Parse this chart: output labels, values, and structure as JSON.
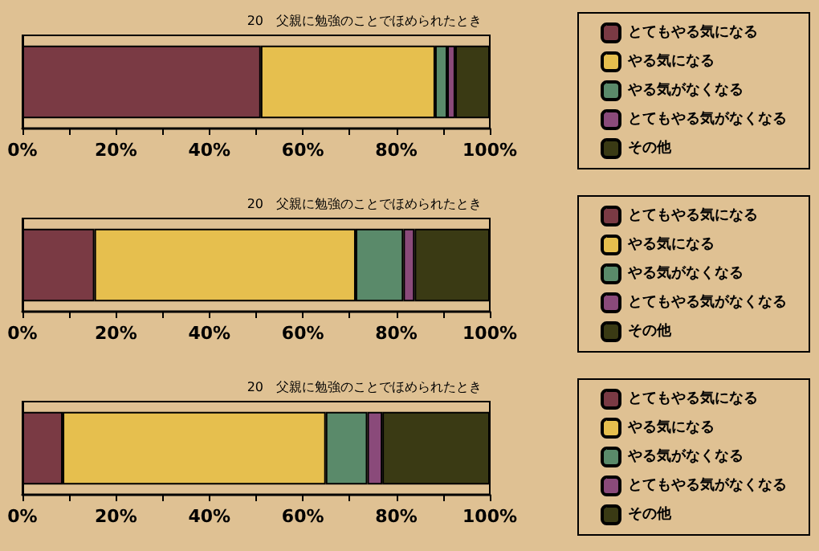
{
  "chart_data": [
    {
      "type": "bar",
      "orientation": "horizontal",
      "stacked": true,
      "title": "20　父親に勉強のことでほめられたとき",
      "categories": [
        null
      ],
      "legend": "right",
      "grid": false,
      "xlim": [
        0,
        100
      ],
      "xticks": [
        {
          "value": 0,
          "label": "0%"
        },
        {
          "value": 10,
          "label": null
        },
        {
          "value": 20,
          "label": "20%"
        },
        {
          "value": 30,
          "label": null
        },
        {
          "value": 40,
          "label": "40%"
        },
        {
          "value": 50,
          "label": null
        },
        {
          "value": 60,
          "label": "60%"
        },
        {
          "value": 70,
          "label": null
        },
        {
          "value": 80,
          "label": "80%"
        },
        {
          "value": 90,
          "label": null
        },
        {
          "value": 100,
          "label": "100%"
        }
      ],
      "series": [
        {
          "name": "とてもやる気になる",
          "color": "#7a3a44",
          "values": [
            51.0
          ]
        },
        {
          "name": "やる気になる",
          "color": "#e6bf4e",
          "values": [
            37.3
          ]
        },
        {
          "name": "やる気がなくなる",
          "color": "#5a8a6a",
          "values": [
            2.6
          ]
        },
        {
          "name": "とてもやる気がなくなる",
          "color": "#8a4a7a",
          "values": [
            1.7
          ]
        },
        {
          "name": "その他",
          "color": "#3a3a14",
          "values": [
            7.4
          ]
        }
      ]
    },
    {
      "type": "bar",
      "orientation": "horizontal",
      "stacked": true,
      "title": "20　父親に勉強のことでほめられたとき",
      "categories": [
        null
      ],
      "legend": "right",
      "grid": false,
      "xlim": [
        0,
        100
      ],
      "xticks": [
        {
          "value": 0,
          "label": "0%"
        },
        {
          "value": 10,
          "label": null
        },
        {
          "value": 20,
          "label": "20%"
        },
        {
          "value": 30,
          "label": null
        },
        {
          "value": 40,
          "label": "40%"
        },
        {
          "value": 50,
          "label": null
        },
        {
          "value": 60,
          "label": "60%"
        },
        {
          "value": 70,
          "label": null
        },
        {
          "value": 80,
          "label": "80%"
        },
        {
          "value": 90,
          "label": null
        },
        {
          "value": 100,
          "label": "100%"
        }
      ],
      "series": [
        {
          "name": "とてもやる気になる",
          "color": "#7a3a44",
          "values": [
            15.4
          ]
        },
        {
          "name": "やる気になる",
          "color": "#e6bf4e",
          "values": [
            55.9
          ]
        },
        {
          "name": "やる気がなくなる",
          "color": "#5a8a6a",
          "values": [
            10.2
          ]
        },
        {
          "name": "とてもやる気がなくなる",
          "color": "#8a4a7a",
          "values": [
            2.4
          ]
        },
        {
          "name": "その他",
          "color": "#3a3a14",
          "values": [
            16.1
          ]
        }
      ]
    },
    {
      "type": "bar",
      "orientation": "horizontal",
      "stacked": true,
      "title": "20　父親に勉強のことでほめられたとき",
      "categories": [
        null
      ],
      "legend": "right",
      "grid": false,
      "xlim": [
        0,
        100
      ],
      "xticks": [
        {
          "value": 0,
          "label": "0%"
        },
        {
          "value": 10,
          "label": null
        },
        {
          "value": 20,
          "label": "20%"
        },
        {
          "value": 30,
          "label": null
        },
        {
          "value": 40,
          "label": "40%"
        },
        {
          "value": 50,
          "label": null
        },
        {
          "value": 60,
          "label": "60%"
        },
        {
          "value": 70,
          "label": null
        },
        {
          "value": 80,
          "label": "80%"
        },
        {
          "value": 90,
          "label": null
        },
        {
          "value": 100,
          "label": "100%"
        }
      ],
      "series": [
        {
          "name": "とてもやる気になる",
          "color": "#7a3a44",
          "values": [
            8.6
          ]
        },
        {
          "name": "やる気になる",
          "color": "#e6bf4e",
          "values": [
            56.3
          ]
        },
        {
          "name": "やる気がなくなる",
          "color": "#5a8a6a",
          "values": [
            8.9
          ]
        },
        {
          "name": "とてもやる気がなくなる",
          "color": "#8a4a7a",
          "values": [
            3.2
          ]
        },
        {
          "name": "その他",
          "color": "#3a3a14",
          "values": [
            23.0
          ]
        }
      ]
    }
  ]
}
